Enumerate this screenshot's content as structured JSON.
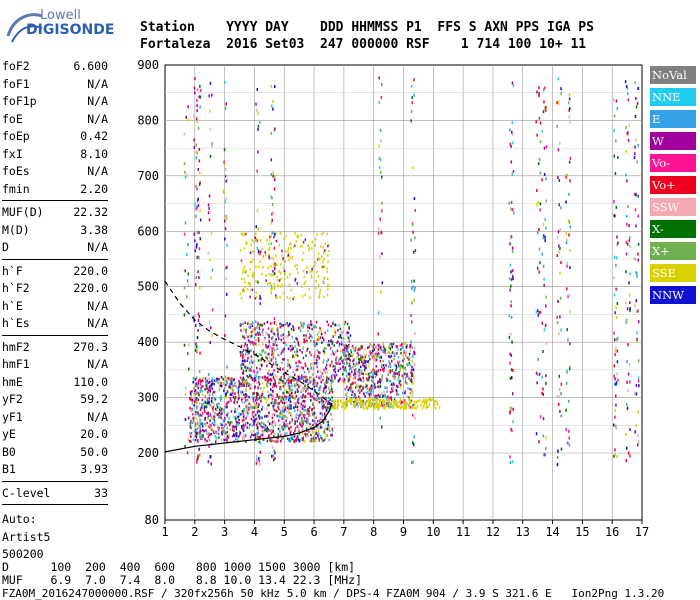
{
  "brand": {
    "line1": "Lowell",
    "line2": "DIGISONDE"
  },
  "header": {
    "labels": "Station    YYYY DAY    DDD HHMMSS P1  FFS S AXN PPS IGA PS",
    "values": "Fortaleza  2016 Set03  247 000000 RSF    1 714 100 10+ 11"
  },
  "params_group1": [
    {
      "name": "foF2",
      "value": "6.600"
    },
    {
      "name": "foF1",
      "value": "N/A"
    },
    {
      "name": "foF1p",
      "value": "N/A"
    },
    {
      "name": "foE",
      "value": "N/A"
    },
    {
      "name": "foEp",
      "value": "0.42"
    },
    {
      "name": "fxI",
      "value": "8.10"
    },
    {
      "name": "foEs",
      "value": "N/A"
    },
    {
      "name": "fmin",
      "value": "2.20"
    }
  ],
  "params_group2": [
    {
      "name": "MUF(D)",
      "value": "22.32"
    },
    {
      "name": "M(D)",
      "value": "3.38"
    },
    {
      "name": "D",
      "value": "N/A"
    }
  ],
  "params_group3": [
    {
      "name": "h`F",
      "value": "220.0"
    },
    {
      "name": "h`F2",
      "value": "220.0"
    },
    {
      "name": "h`E",
      "value": "N/A"
    },
    {
      "name": "h`Es",
      "value": "N/A"
    }
  ],
  "params_group4": [
    {
      "name": "hmF2",
      "value": "270.3"
    },
    {
      "name": "hmF1",
      "value": "N/A"
    },
    {
      "name": "hmE",
      "value": "110.0"
    },
    {
      "name": "yF2",
      "value": "59.2"
    },
    {
      "name": "yF1",
      "value": "N/A"
    },
    {
      "name": "yE",
      "value": "20.0"
    },
    {
      "name": "B0",
      "value": "50.0"
    },
    {
      "name": "B1",
      "value": "3.93"
    }
  ],
  "clevel": {
    "name": "C-level",
    "value": "33"
  },
  "auto": {
    "line1": "Auto:",
    "line2": "Artist5",
    "line3": "500200"
  },
  "legend": [
    {
      "label": "NoVal",
      "color": "#808080"
    },
    {
      "label": "NNE",
      "color": "#22ccf0"
    },
    {
      "label": "E",
      "color": "#34a0e8"
    },
    {
      "label": "W",
      "color": "#a000a0"
    },
    {
      "label": "Vo-",
      "color": "#ff1493"
    },
    {
      "label": "Vo+",
      "color": "#f00020"
    },
    {
      "label": "SSW",
      "color": "#f4a8b0"
    },
    {
      "label": "X-",
      "color": "#007000"
    },
    {
      "label": "X+",
      "color": "#70b050"
    },
    {
      "label": "SSE",
      "color": "#d8d000"
    },
    {
      "label": "NNW",
      "color": "#1010d0"
    }
  ],
  "bottom": {
    "line1": "D      100  200  400  600   800 1000 1500 3000 [km]",
    "line2": "MUF    6.9  7.0  7.4  8.0   8.8 10.0 13.4 22.3 [MHz]",
    "line3": "FZA0M_2016247000000.RSF / 320fx256h 50 kHz 5.0 km / DPS-4 FZA0M 904 / 3.9 S 321.6 E   Ion2Png 1.3.20"
  },
  "chart_data": {
    "type": "scatter",
    "title": "",
    "xlabel": "",
    "ylabel": "",
    "xlim": [
      1,
      17
    ],
    "ylim": [
      80,
      900
    ],
    "x_ticks": [
      1,
      2,
      3,
      4,
      5,
      6,
      7,
      8,
      9,
      10,
      11,
      12,
      13,
      14,
      15,
      16,
      17
    ],
    "y_ticks": [
      80,
      200,
      300,
      400,
      500,
      600,
      700,
      800,
      900
    ],
    "grid": true,
    "profile_curve": {
      "style": "dashed",
      "x": [
        1.0,
        1.5,
        2.0,
        2.5,
        3.0,
        3.5,
        4.0,
        4.5,
        5.0,
        5.5,
        6.0,
        6.3,
        6.55
      ],
      "y": [
        510,
        470,
        440,
        420,
        405,
        392,
        378,
        362,
        345,
        330,
        312,
        300,
        290
      ]
    },
    "trace_curve": {
      "style": "solid",
      "x": [
        1.0,
        2.0,
        3.0,
        4.0,
        5.0,
        5.5,
        6.0,
        6.3,
        6.5,
        6.6
      ],
      "y": [
        202,
        212,
        218,
        224,
        230,
        236,
        246,
        258,
        275,
        290
      ]
    },
    "echo_regions": [
      {
        "name": "main F-trace",
        "x": [
          1.8,
          6.6
        ],
        "y": [
          222,
          340
        ],
        "dominant_color": "#a000a0"
      },
      {
        "name": "upper layer",
        "x": [
          3.5,
          7.2
        ],
        "y": [
          330,
          440
        ],
        "dominant_color": "#a000a0"
      },
      {
        "name": "secondary trace",
        "x": [
          7.0,
          9.3
        ],
        "y": [
          285,
          400
        ],
        "dominant_color": "#ff1493"
      },
      {
        "name": "SSE patch",
        "x": [
          3.5,
          6.5
        ],
        "y": [
          480,
          600
        ],
        "dominant_color": "#d8d000"
      }
    ]
  }
}
